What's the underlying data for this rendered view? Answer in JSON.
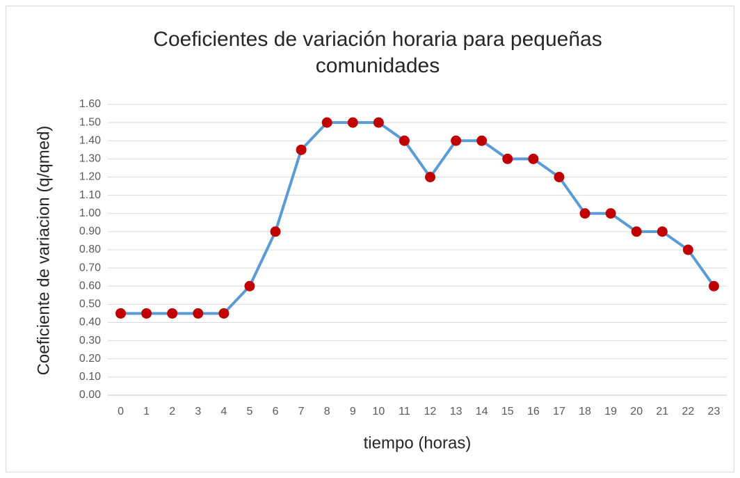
{
  "chart_data": {
    "type": "line",
    "title": "Coeficientes de variación horaria para pequeñas comunidades",
    "x_label": "tiempo (horas)",
    "y_label": "Coeficiente de variacion (q/qmed)",
    "categories": [
      "0",
      "1",
      "2",
      "3",
      "4",
      "5",
      "6",
      "7",
      "8",
      "9",
      "10",
      "11",
      "12",
      "13",
      "14",
      "15",
      "16",
      "17",
      "18",
      "19",
      "20",
      "21",
      "22",
      "23"
    ],
    "series": [
      {
        "name": "Coeficiente",
        "color": "#5b9bd5",
        "marker_color": "#c00000",
        "values": [
          0.45,
          0.45,
          0.45,
          0.45,
          0.45,
          0.6,
          0.9,
          1.35,
          1.5,
          1.5,
          1.5,
          1.4,
          1.2,
          1.4,
          1.4,
          1.3,
          1.3,
          1.2,
          1.0,
          1.0,
          0.9,
          0.9,
          0.8,
          0.6
        ]
      }
    ],
    "ylim": [
      0,
      1.6
    ],
    "yticks": [
      {
        "value": 0,
        "label": "0.00"
      },
      {
        "value": 0.1,
        "label": "0.10"
      },
      {
        "value": 0.2,
        "label": "0.20"
      },
      {
        "value": 0.3,
        "label": "0.30"
      },
      {
        "value": 0.4,
        "label": "0.40"
      },
      {
        "value": 0.5,
        "label": "0.50"
      },
      {
        "value": 0.6,
        "label": "0.60"
      },
      {
        "value": 0.7,
        "label": "0.70"
      },
      {
        "value": 0.8,
        "label": "0.80"
      },
      {
        "value": 0.9,
        "label": "0.90"
      },
      {
        "value": 1.0,
        "label": "1.00"
      },
      {
        "value": 1.1,
        "label": "1.10"
      },
      {
        "value": 1.2,
        "label": "1.20"
      },
      {
        "value": 1.3,
        "label": "1.30"
      },
      {
        "value": 1.4,
        "label": "1.40"
      },
      {
        "value": 1.5,
        "label": "1.50"
      },
      {
        "value": 1.6,
        "label": "1.60"
      }
    ],
    "grid": true
  }
}
